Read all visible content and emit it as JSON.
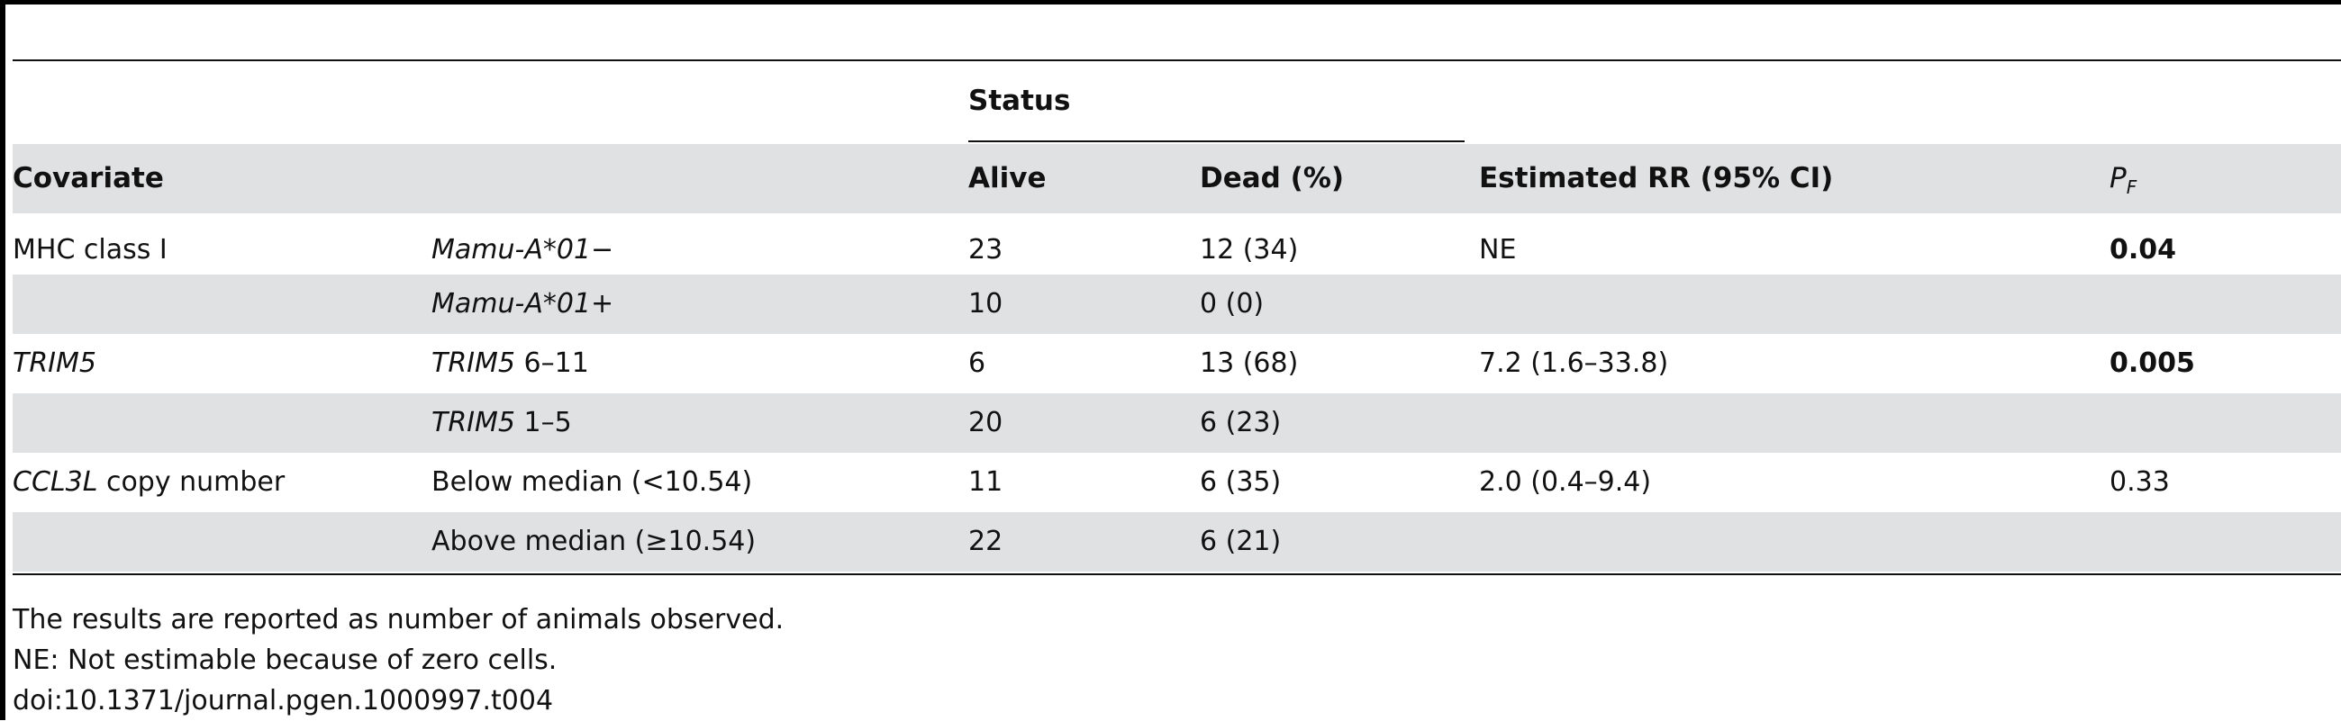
{
  "header": {
    "status_label": "Status",
    "covariate": "Covariate",
    "alive": "Alive",
    "dead": "Dead (%)",
    "rr": "Estimated RR (95% CI)",
    "pf_main": "P",
    "pf_sub": "F"
  },
  "rows": [
    {
      "covariate": "MHC class I",
      "covariate_italic": "",
      "covariate_tail": "",
      "group_italic": "Mamu-A*01−",
      "group_tail": "",
      "alive": "23",
      "dead": "12 (34)",
      "rr": "NE",
      "p": "0.04"
    },
    {
      "covariate": "",
      "covariate_italic": "",
      "covariate_tail": "",
      "group_italic": "Mamu-A*01+",
      "group_tail": "",
      "alive": "10",
      "dead": "0 (0)",
      "rr": "",
      "p": ""
    },
    {
      "covariate": "",
      "covariate_italic": "TRIM5",
      "covariate_tail": "",
      "group_italic": "TRIM5",
      "group_tail": " 6–11",
      "alive": "6",
      "dead": "13 (68)",
      "rr": "7.2 (1.6–33.8)",
      "p": "0.005"
    },
    {
      "covariate": "",
      "covariate_italic": "",
      "covariate_tail": "",
      "group_italic": "TRIM5",
      "group_tail": " 1–5",
      "alive": "20",
      "dead": "6 (23)",
      "rr": "",
      "p": ""
    },
    {
      "covariate": "",
      "covariate_italic": "CCL3L",
      "covariate_tail": " copy number",
      "group_italic": "",
      "group_tail": "Below median (<10.54)",
      "alive": "11",
      "dead": "6 (35)",
      "rr": "2.0 (0.4–9.4)",
      "p": "0.33"
    },
    {
      "covariate": "",
      "covariate_italic": "",
      "covariate_tail": "",
      "group_italic": "",
      "group_tail": "Above median (≥10.54)",
      "alive": "22",
      "dead": "6 (21)",
      "rr": "",
      "p": ""
    }
  ],
  "notes": [
    "The results are reported as number of animals observed.",
    "NE: Not estimable because of zero cells.",
    "doi:10.1371/journal.pgen.1000997.t004"
  ]
}
